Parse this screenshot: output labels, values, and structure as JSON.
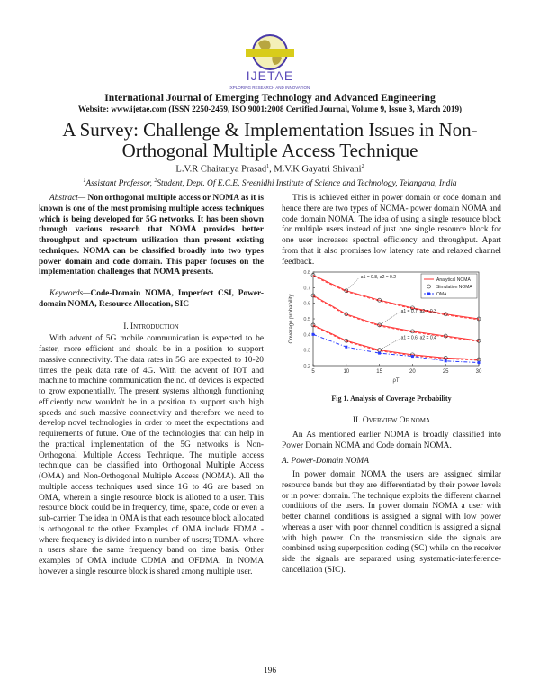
{
  "logo": {
    "name": "IJETAE",
    "tagline": "EXPLORING RESEARCH AND INNOVATIONS"
  },
  "journal": {
    "name": "International Journal of Emerging Technology and Advanced Engineering",
    "info": "Website: www.ijetae.com (ISSN 2250-2459, ISO 9001:2008 Certified Journal, Volume 9, Issue 3, March 2019)"
  },
  "paper": {
    "title_line1": "A Survey: Challenge & Implementation Issues in Non-",
    "title_line2": "Orthogonal Multiple Access Technique",
    "author1": "L.V.R Chaitanya Prasad",
    "author1_sup": "1",
    "author_sep": ", ",
    "author2": "M.V.K Gayatri Shivani",
    "author2_sup": "2",
    "aff1_sup": "1",
    "aff1": "Assistant Professor, ",
    "aff2_sup": "2",
    "aff2": "Student, Dept. Of E.C.E, Sreenidhi Institute of Science and Technology, Telangana, India"
  },
  "abstract": {
    "label": "Abstract—",
    "text": " Non orthogonal multiple access or NOMA as it is known is one of the most promising multiple access techniques which is being developed for 5G networks. It has been shown through various research that NOMA provides better throughput and spectrum utilization than present existing techniques. NOMA can be classified broadly into two types power domain and code domain. This paper focuses on the implementation challenges that NOMA presents."
  },
  "keywords": {
    "label": "Keywords—",
    "text": "Code-Domain NOMA, Imperfect CSI, Power-domain NOMA, Resource Allocation, SIC"
  },
  "sections": {
    "intro_heading": "I. Introduction",
    "intro_text": "With advent of 5G mobile communication is expected to be faster, more efficient and should be in a position to support massive connectivity. The data rates in 5G are expected to 10-20 times the peak data rate of 4G. With the advent of IOT and machine to machine communication the no. of devices is expected to grow exponentially. The present systems although functioning efficiently now wouldn't be in a position to support such high speeds and such massive connectivity and therefore we need to develop novel technologies in order to meet the expectations and requirements of future. One of the technologies that can help in the practical implementation of the 5G networks is Non-Orthogonal Multiple Access Technique. The multiple access technique can be classified into Orthogonal Multiple Access (OMA) and Non-Orthogonal Multiple Access (NOMA). All the multiple access techniques used since 1G to 4G are based on OMA, wherein a single resource block is allotted to a user. This resource block could be in frequency, time, space, code or even a sub-carrier. The idea in OMA is that each resource block allocated is orthogonal to the other. Examples of OMA include FDMA -where frequency is divided into n number of users; TDMA- where n users share the same frequency band on time basis. Other examples of OMA include CDMA and OFDMA. In NOMA however a single resource block is shared among multiple user.",
    "right_intro_text": "This is achieved either in power domain or code domain and hence there are two types of NOMA- power domain NOMA and code domain NOMA. The idea of using a single resource block for multiple users instead of just one single resource block for one user increases spectral efficiency and throughput. Apart from that it also promises low latency rate and relaxed channel feedback.",
    "figure_caption": "Fig 1. Analysis of Coverage Probability",
    "overview_heading": "II. Overview Of noma",
    "overview_text": "An As mentioned earlier NOMA is broadly classified into Power Domain NOMA and Code domain NOMA.",
    "subsection_heading": "A. Power-Domain NOMA",
    "subsection_text": "In power domain NOMA the users are assigned similar resource bands but they are differentiated by their power levels or in power domain. The technique exploits the different channel conditions of the users. In power domain NOMA a user with better channel conditions is assigned a signal with low power whereas a user with poor channel condition is assigned a signal with high power. On the transmission side the signals are combined using superposition coding (SC) while on the receiver side the signals are separated using systematic-interference-cancellation (SIC)."
  },
  "page_number": "196",
  "chart_data": {
    "type": "line",
    "title": "",
    "xlabel": "ρT",
    "ylabel": "Coverage probability",
    "x": [
      5,
      10,
      15,
      20,
      25,
      30
    ],
    "xlim": [
      5,
      30
    ],
    "ylim": [
      0.2,
      0.8
    ],
    "xticks": [
      "5",
      "10",
      "15",
      "20",
      "25",
      "30"
    ],
    "yticks": [
      "0.2",
      "0.3",
      "0.4",
      "0.5",
      "0.6",
      "0.7",
      "0.8"
    ],
    "legend_position": "top-right",
    "legend": [
      "Analytical NOMA",
      "Simulation NOMA",
      "OMA"
    ],
    "series": [
      {
        "name": "NOMA a1=0.8, a2=0.2",
        "values": [
          0.78,
          0.68,
          0.62,
          0.57,
          0.53,
          0.5
        ]
      },
      {
        "name": "NOMA a1=0.7, a2=0.3",
        "values": [
          0.65,
          0.53,
          0.46,
          0.42,
          0.39,
          0.36
        ]
      },
      {
        "name": "NOMA a1=0.6, a2=0.4",
        "values": [
          0.46,
          0.36,
          0.3,
          0.27,
          0.25,
          0.24
        ]
      },
      {
        "name": "OMA",
        "values": [
          0.4,
          0.32,
          0.28,
          0.26,
          0.23,
          0.22
        ]
      }
    ],
    "annotations": [
      {
        "text": "a1 = 0.8, a2 = 0.2",
        "x": 10,
        "y": 0.68
      },
      {
        "text": "a1 = 0.7, a2 = 0.3",
        "x": 15,
        "y": 0.46
      },
      {
        "text": "a1 = 0.6, a2 = 0.4",
        "x": 15,
        "y": 0.3
      }
    ],
    "colors": {
      "noma": "#ff3030",
      "oma": "#2a3cff",
      "markers": "#222222"
    }
  }
}
